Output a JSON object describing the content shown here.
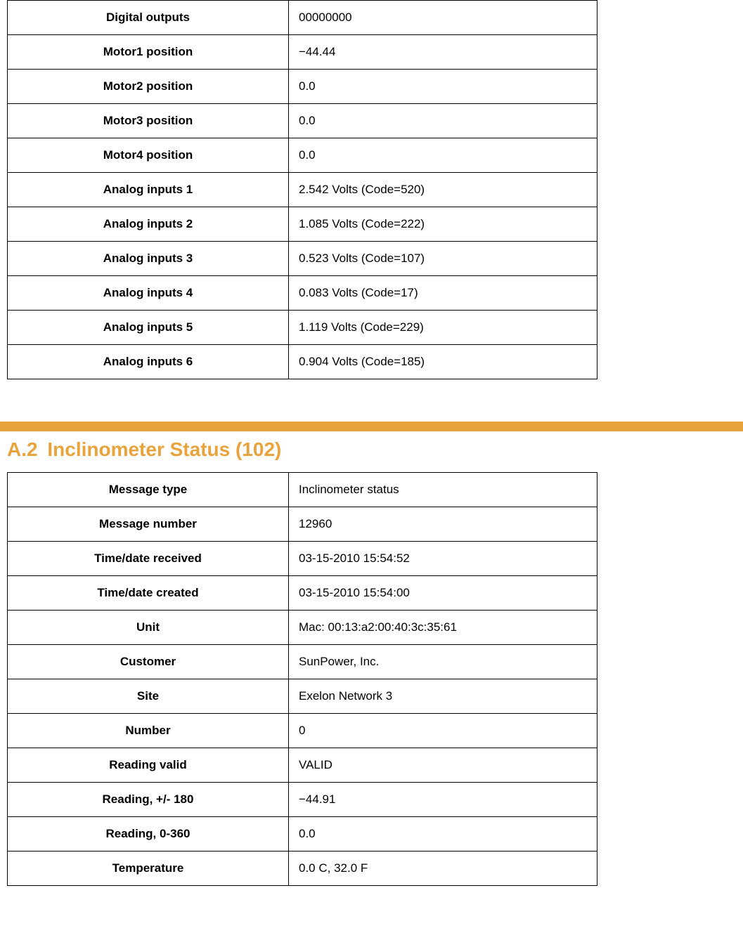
{
  "colors": {
    "accent": "#e8a33d",
    "border": "#000000",
    "text": "#000000",
    "background": "#ffffff"
  },
  "table1": {
    "rows": [
      {
        "label": "Digital outputs",
        "value": "00000000"
      },
      {
        "label": "Motor1 position",
        "value": "−44.44"
      },
      {
        "label": "Motor2 position",
        "value": "0.0"
      },
      {
        "label": "Motor3 position",
        "value": "0.0"
      },
      {
        "label": "Motor4 position",
        "value": "0.0"
      },
      {
        "label": "Analog inputs 1",
        "value": "2.542 Volts (Code=520)"
      },
      {
        "label": "Analog inputs 2",
        "value": "1.085 Volts (Code=222)"
      },
      {
        "label": "Analog inputs 3",
        "value": "0.523 Volts (Code=107)"
      },
      {
        "label": "Analog inputs 4",
        "value": "0.083 Volts (Code=17)"
      },
      {
        "label": "Analog inputs 5",
        "value": "1.119 Volts (Code=229)"
      },
      {
        "label": "Analog inputs 6",
        "value": "0.904 Volts (Code=185)"
      }
    ]
  },
  "section2": {
    "heading_number": "A.2",
    "heading_title": "Inclinometer Status (102)"
  },
  "table2": {
    "rows": [
      {
        "label": "Message type",
        "value": "Inclinometer status"
      },
      {
        "label": "Message number",
        "value": "12960"
      },
      {
        "label": "Time/date received",
        "value": "03-15-2010 15:54:52"
      },
      {
        "label": "Time/date created",
        "value": "03-15-2010 15:54:00"
      },
      {
        "label": "Unit",
        "value": "Mac: 00:13:a2:00:40:3c:35:61"
      },
      {
        "label": "Customer",
        "value": "SunPower, Inc."
      },
      {
        "label": "Site",
        "value": "Exelon Network 3"
      },
      {
        "label": "Number",
        "value": "0"
      },
      {
        "label": "Reading valid",
        "value": "VALID"
      },
      {
        "label": "Reading, +/- 180",
        "value": "−44.91"
      },
      {
        "label": "Reading, 0-360",
        "value": "0.0"
      },
      {
        "label": "Temperature",
        "value": "0.0 C, 32.0 F"
      }
    ]
  }
}
